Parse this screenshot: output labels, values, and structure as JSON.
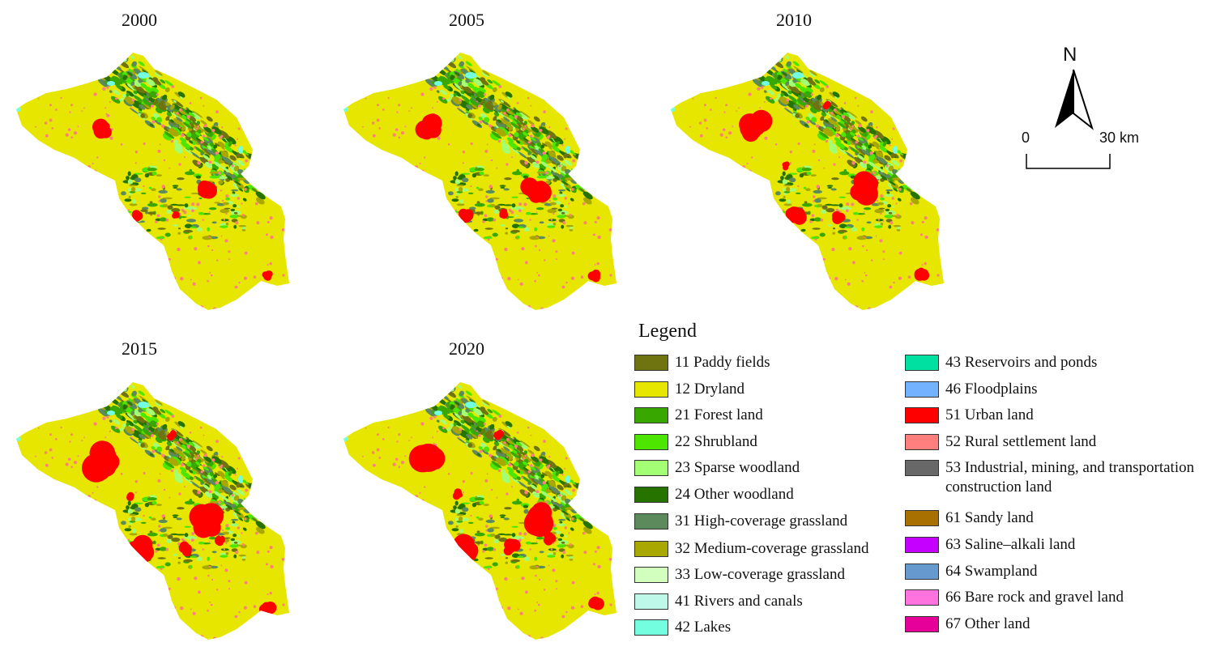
{
  "years": [
    "2000",
    "2005",
    "2010",
    "2015",
    "2020"
  ],
  "north_label": "N",
  "scale": {
    "start": "0",
    "end": "30 km"
  },
  "legend": {
    "title": "Legend",
    "left": [
      {
        "code_label": "11 Paddy fields",
        "color": "#6f7310"
      },
      {
        "code_label": "12 Dryland",
        "color": "#e6e600"
      },
      {
        "code_label": "21 Forest land",
        "color": "#38a800"
      },
      {
        "code_label": "22 Shrubland",
        "color": "#4ce600"
      },
      {
        "code_label": "23 Sparse woodland",
        "color": "#a3ff73"
      },
      {
        "code_label": "24 Other woodland",
        "color": "#267300"
      },
      {
        "code_label": "31 High-coverage grassland",
        "color": "#5c8a5c"
      },
      {
        "code_label": "32 Medium-coverage grassland",
        "color": "#a8a800"
      },
      {
        "code_label": "33 Low-coverage grassland",
        "color": "#d3ffbe"
      },
      {
        "code_label": "41 Rivers and canals",
        "color": "#bef8e8"
      },
      {
        "code_label": "42 Lakes",
        "color": "#73ffdf"
      }
    ],
    "right": [
      {
        "code_label": "43 Reservoirs and ponds",
        "color": "#00e0a0"
      },
      {
        "code_label": "46 Floodplains",
        "color": "#73b2ff"
      },
      {
        "code_label": "51 Urban land",
        "color": "#ff0000"
      },
      {
        "code_label": "52 Rural settlement land",
        "color": "#ff7f7f"
      },
      {
        "code_label": "53 Industrial, mining, and transportation construction land",
        "color": "#686868"
      },
      {
        "code_label": "61 Sandy land",
        "color": "#a87000"
      },
      {
        "code_label": "63 Saline–alkali land",
        "color": "#c500ff"
      },
      {
        "code_label": "64 Swampland",
        "color": "#6699cd"
      },
      {
        "code_label": "66 Bare rock and gravel land",
        "color": "#ff73df"
      },
      {
        "code_label": "67 Other land",
        "color": "#e60099"
      }
    ]
  }
}
